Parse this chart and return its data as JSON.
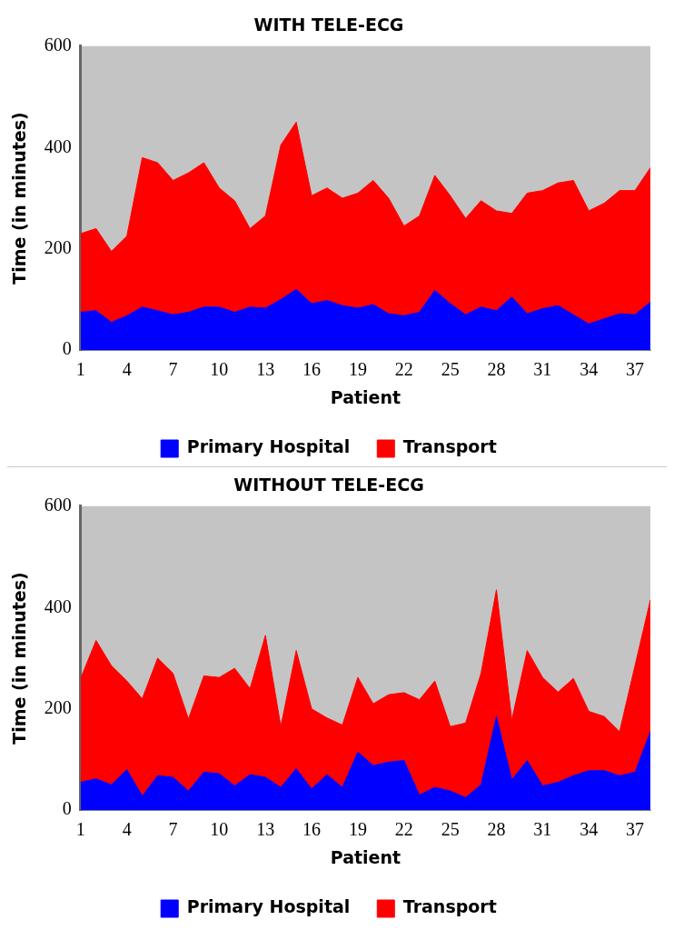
{
  "chart_data": [
    {
      "type": "area",
      "title": "WITH TELE-ECG",
      "xlabel": "Patient",
      "ylabel": "Time (in minutes)",
      "stacked": true,
      "legend": "bottom",
      "grid": false,
      "categories": [
        "1",
        null,
        null,
        "4",
        null,
        null,
        "7",
        null,
        null,
        "10",
        null,
        null,
        "13",
        null,
        null,
        "16",
        null,
        null,
        "19",
        null,
        null,
        "22",
        null,
        null,
        "25",
        null,
        null,
        "28",
        null,
        null,
        "31",
        null,
        null,
        "34",
        null,
        null,
        "37",
        null
      ],
      "ylim": [
        0,
        600
      ],
      "yticks": [
        0,
        200,
        400,
        600
      ],
      "series": [
        {
          "name": "Primary Hospital",
          "color": "#0000ff",
          "values": [
            75,
            78,
            55,
            68,
            85,
            78,
            70,
            75,
            85,
            85,
            75,
            85,
            83,
            100,
            120,
            92,
            98,
            88,
            83,
            90,
            72,
            68,
            75,
            118,
            92,
            70,
            85,
            78,
            105,
            72,
            82,
            88,
            70,
            52,
            62,
            72,
            70,
            95
          ]
        },
        {
          "name": "Transport",
          "color": "#ff0000",
          "values": [
            155,
            162,
            140,
            157,
            295,
            292,
            265,
            275,
            285,
            235,
            220,
            155,
            182,
            305,
            330,
            213,
            222,
            212,
            227,
            245,
            228,
            177,
            190,
            227,
            213,
            190,
            210,
            197,
            165,
            238,
            233,
            242,
            265,
            223,
            228,
            243,
            245,
            265
          ]
        }
      ]
    },
    {
      "type": "area",
      "title": "WITHOUT TELE-ECG",
      "xlabel": "Patient",
      "ylabel": "Time (in minutes)",
      "stacked": true,
      "legend": "bottom",
      "grid": false,
      "categories": [
        "1",
        null,
        null,
        "4",
        null,
        null,
        "7",
        null,
        null,
        "10",
        null,
        null,
        "13",
        null,
        null,
        "16",
        null,
        null,
        "19",
        null,
        null,
        "22",
        null,
        null,
        "25",
        null,
        null,
        "28",
        null,
        null,
        "31",
        null,
        null,
        "34",
        null,
        null,
        "37",
        null
      ],
      "ylim": [
        0,
        600
      ],
      "yticks": [
        0,
        200,
        400,
        600
      ],
      "series": [
        {
          "name": "Primary Hospital",
          "color": "#0000ff",
          "values": [
            55,
            62,
            50,
            80,
            28,
            68,
            65,
            38,
            75,
            72,
            48,
            70,
            65,
            45,
            82,
            42,
            70,
            45,
            115,
            88,
            95,
            98,
            30,
            45,
            38,
            25,
            50,
            185,
            60,
            98,
            48,
            55,
            68,
            78,
            78,
            68,
            75,
            155
          ]
        },
        {
          "name": "Transport",
          "color": "#ff0000",
          "values": [
            205,
            273,
            235,
            175,
            192,
            232,
            205,
            142,
            190,
            190,
            232,
            170,
            280,
            120,
            233,
            158,
            112,
            123,
            147,
            122,
            133,
            134,
            188,
            210,
            127,
            147,
            220,
            250,
            118,
            217,
            214,
            178,
            192,
            117,
            107,
            87,
            210,
            260
          ]
        }
      ]
    }
  ]
}
